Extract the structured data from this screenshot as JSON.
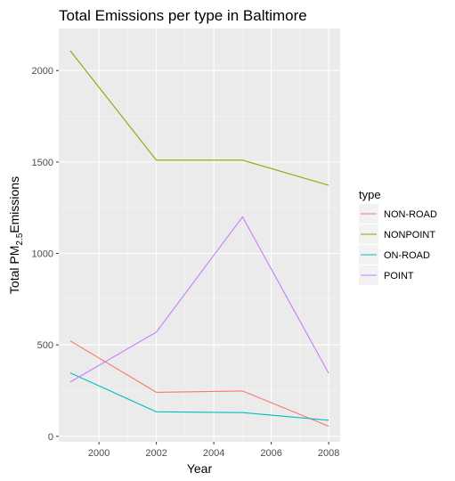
{
  "chart_data": {
    "type": "line",
    "title": "Total Emissions per type in Baltimore",
    "xlabel": "Year",
    "ylabel": {
      "prefix": "Total PM",
      "sub": "2.5",
      "suffix": "Emissions"
    },
    "x": [
      1999,
      2002,
      2005,
      2008
    ],
    "xlim": [
      1998.6,
      2008.4
    ],
    "ylim": [
      -30,
      2230
    ],
    "x_ticks": [
      2000,
      2002,
      2004,
      2006,
      2008
    ],
    "y_ticks": [
      0,
      500,
      1000,
      1500,
      2000
    ],
    "grid": true,
    "legend_position": "right",
    "legend_title": "type",
    "series": [
      {
        "name": "NON-ROAD",
        "color": "#F8766D",
        "values": [
          522,
          241,
          248,
          55
        ]
      },
      {
        "name": "NONPOINT",
        "color": "#7CAE00",
        "values": [
          2108,
          1510,
          1510,
          1373
        ]
      },
      {
        "name": "ON-ROAD",
        "color": "#00BFC4",
        "values": [
          347,
          134,
          130,
          88
        ]
      },
      {
        "name": "POINT",
        "color": "#C77CFF",
        "values": [
          297,
          570,
          1200,
          345
        ]
      }
    ]
  }
}
